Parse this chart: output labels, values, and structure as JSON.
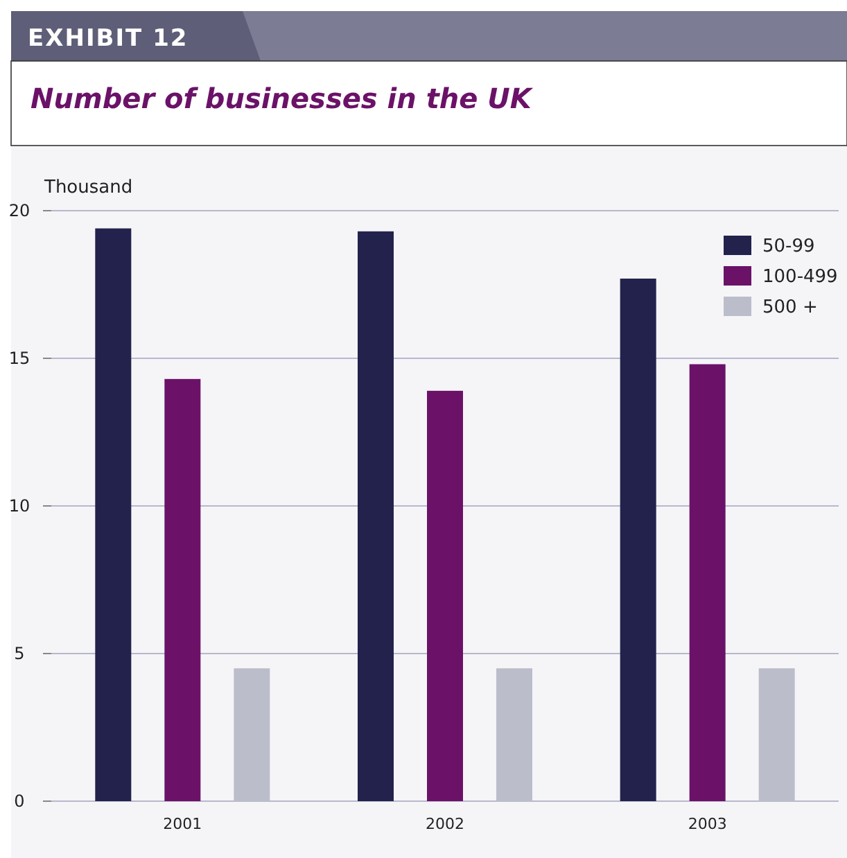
{
  "chart_data": {
    "type": "bar",
    "title": "Number of businesses in the UK",
    "annotations": [
      "EXHIBIT 12"
    ],
    "ylabel": "Thousand",
    "categories": [
      "2001",
      "2002",
      "2003"
    ],
    "series": [
      {
        "name": "50-99",
        "color": "#22224d",
        "values": [
          19.4,
          19.3,
          17.7
        ]
      },
      {
        "name": "100-499",
        "color": "#6b1268",
        "values": [
          14.3,
          13.9,
          14.8
        ]
      },
      {
        "name": "500 +",
        "color": "#bcbdcb",
        "values": [
          4.5,
          4.5,
          4.5
        ]
      }
    ],
    "ylim": [
      0,
      20
    ],
    "yticks": [
      0,
      5,
      10,
      15,
      20
    ],
    "grid": "y",
    "legend": "top right"
  }
}
